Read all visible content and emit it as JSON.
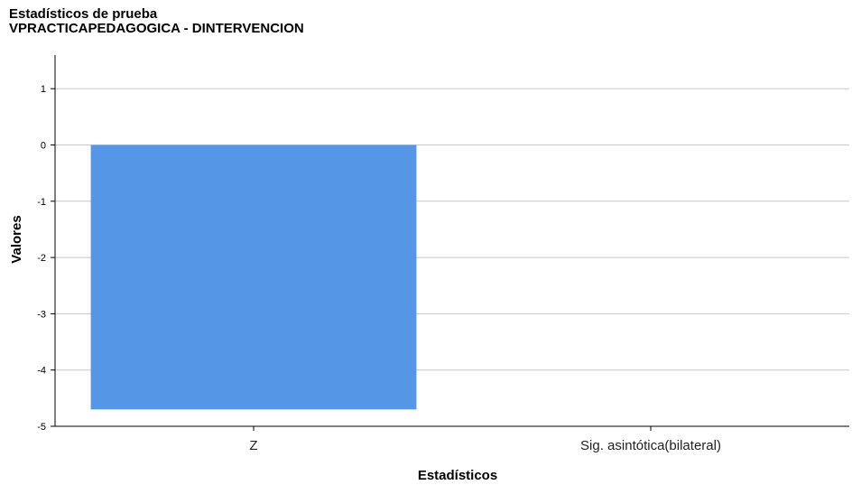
{
  "chart_data": {
    "type": "bar",
    "title": "Estadísticos de prueba",
    "subtitle": "VPRACTICAPEDAGOGICA - DINTERVENCION",
    "xlabel": "Estadísticos",
    "ylabel": "Valores",
    "categories": [
      "Z",
      "Sig. asintótica(bilateral)"
    ],
    "values": [
      -4.7,
      0.0
    ],
    "ylim": [
      -5,
      1.6
    ],
    "yticks": [
      "1",
      "0",
      "-1",
      "-2",
      "-3",
      "-4",
      "-5"
    ],
    "grid": true,
    "legend": "none",
    "colors": {
      "bar": "#5596e6",
      "grid": "#c8c8c8",
      "axis": "#000000"
    }
  }
}
